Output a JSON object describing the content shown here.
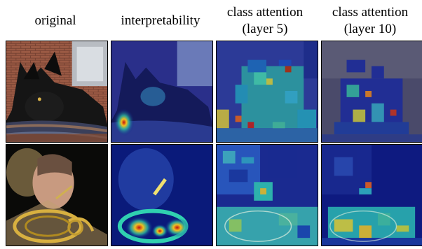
{
  "columns": [
    {
      "title_line1": "original",
      "title_line2": ""
    },
    {
      "title_line1": "interpretability",
      "title_line2": ""
    },
    {
      "title_line1": "class attention",
      "title_line2": "(layer 5)"
    },
    {
      "title_line1": "class attention",
      "title_line2": "(layer 10)"
    }
  ],
  "rows": [
    {
      "subject": "dog",
      "kind": "photo"
    },
    {
      "subject": "man-with-french-horn",
      "kind": "photo"
    }
  ],
  "colors": {
    "low": "#0a1a8c",
    "mid": "#1fd0b8",
    "high": "#e0441a",
    "peak": "#b01010"
  }
}
